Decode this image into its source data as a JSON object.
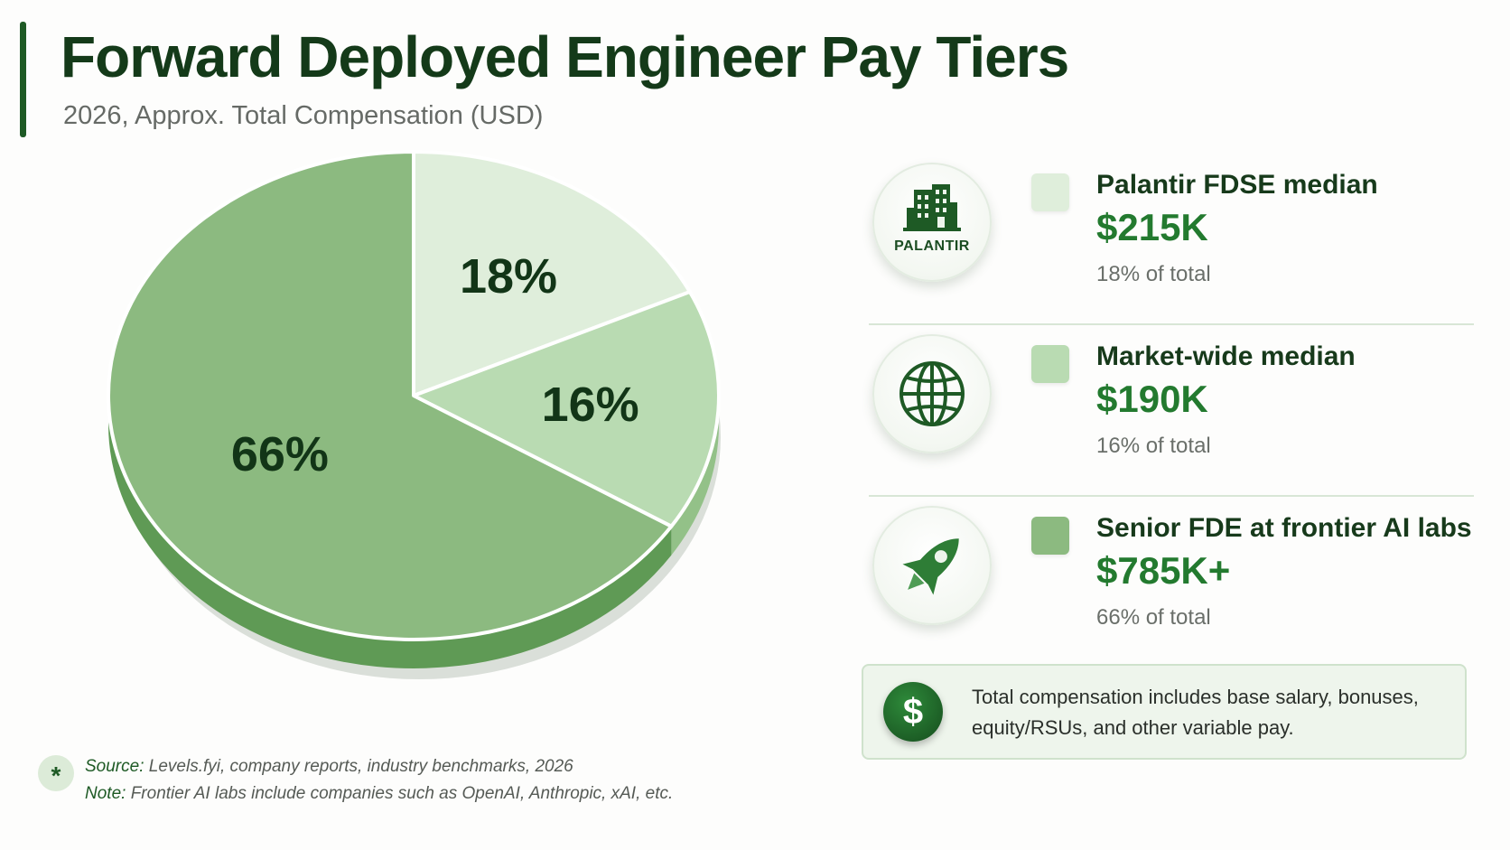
{
  "header": {
    "title": "Forward Deployed Engineer Pay Tiers",
    "subtitle": "2026, Approx. Total Compensation (USD)"
  },
  "colors": {
    "accent": "#1e5a25",
    "value_green": "#237a2f",
    "slice_palantir": "#dfeedb",
    "slice_market": "#b9dbb2",
    "slice_frontier": "#8cba80",
    "slice_frontier_side": "#5f9a55"
  },
  "chart_data": {
    "type": "pie",
    "title": "",
    "slices": [
      {
        "label": "Palantir FDSE median",
        "percent": 18,
        "display": "18%",
        "color": "#dfeedb"
      },
      {
        "label": "Market-wide median",
        "percent": 16,
        "display": "16%",
        "color": "#b9dbb2"
      },
      {
        "label": "Senior FDE at frontier AI labs",
        "percent": 66,
        "display": "66%",
        "color": "#8cba80"
      }
    ],
    "legend_position": "right"
  },
  "legend": {
    "items": [
      {
        "icon": "building-icon",
        "icon_text": "PALANTIR",
        "label": "Palantir FDSE median",
        "value": "$215K",
        "share": "18% of total",
        "color": "#dfeedb"
      },
      {
        "icon": "globe-icon",
        "label": "Market-wide median",
        "value": "$190K",
        "share": "16% of total",
        "color": "#b9dbb2"
      },
      {
        "icon": "rocket-icon",
        "label": "Senior FDE at frontier AI labs",
        "value": "$785K+",
        "share": "66% of total",
        "color": "#8cba80"
      }
    ]
  },
  "note": {
    "icon": "dollar-icon",
    "symbol": "$",
    "text": "Total compensation includes base salary, bonuses, equity/RSUs, and other variable pay."
  },
  "footer": {
    "icon": "asterisk-icon",
    "symbol": "*",
    "source_key": "Source:",
    "source_text": "Levels.fyi, company reports, industry benchmarks, 2026",
    "note_key": "Note:",
    "note_text": "Frontier AI labs include companies such as OpenAI, Anthropic, xAI, etc."
  }
}
